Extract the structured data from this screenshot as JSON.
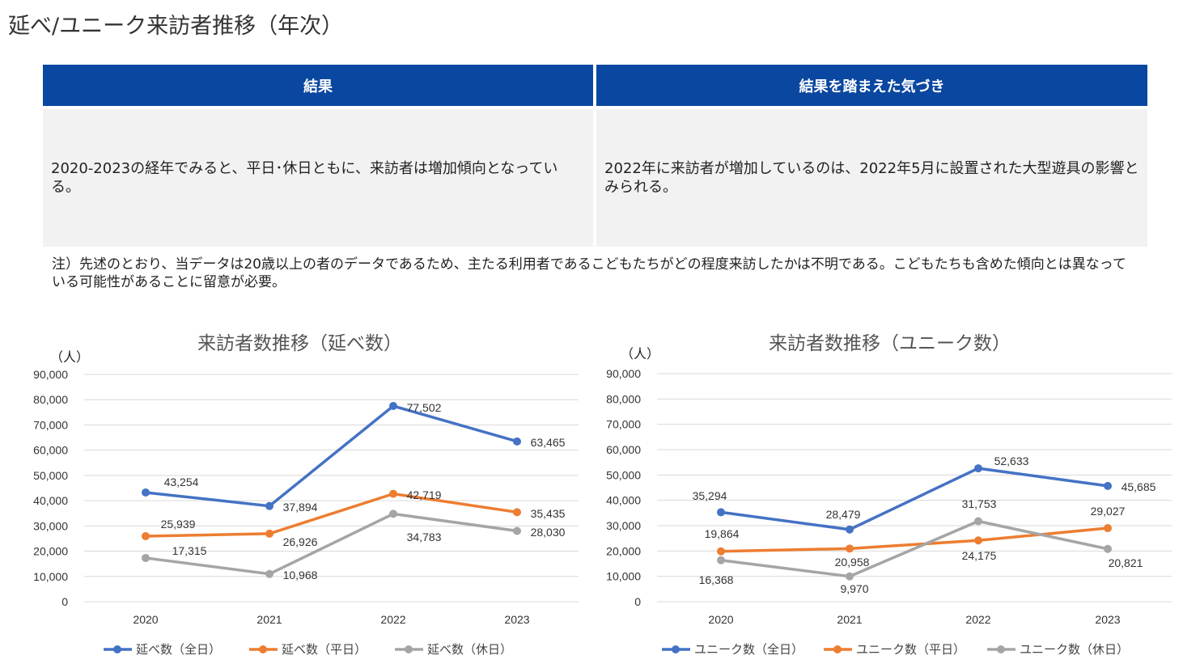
{
  "title": "延べ/ユニーク来訪者推移（年次）",
  "table": {
    "headers": [
      "結果",
      "結果を踏まえた気づき"
    ],
    "cells": [
      "2020-2023の経年でみると、平日･休日ともに、来訪者は増加傾向となっている。",
      "2022年に来訪者が増加しているのは、2022年5月に設置された大型遊具の影響とみられる。"
    ]
  },
  "note": "注）先述のとおり、当データは20歳以上の者のデータであるため、主たる利用者であるこどもたちがどの程度来訪したかは不明である。こどもたちも含めた傾向とは異なっている可能性があることに留意が必要。",
  "chart_data": [
    {
      "type": "line",
      "title": "来訪者数推移（延べ数）",
      "ylabel": "（人）",
      "categories": [
        "2020",
        "2021",
        "2022",
        "2023"
      ],
      "ylim": [
        0,
        90000
      ],
      "yticks": [
        "0",
        "10,000",
        "20,000",
        "30,000",
        "40,000",
        "50,000",
        "60,000",
        "70,000",
        "80,000",
        "90,000"
      ],
      "grid": true,
      "legend": "bottom",
      "series": [
        {
          "name": "延べ数（全日）",
          "color": "#4472c4",
          "values": [
            43254,
            37894,
            77502,
            63465
          ],
          "labels": [
            "43,254",
            "37,894",
            "77,502",
            "63,465"
          ]
        },
        {
          "name": "延べ数（平日）",
          "color": "#ed7d31",
          "values": [
            25939,
            26926,
            42719,
            35435
          ],
          "labels": [
            "25,939",
            "26,926",
            "42,719",
            "35,435"
          ]
        },
        {
          "name": "延べ数（休日）",
          "color": "#a5a5a5",
          "values": [
            17315,
            10968,
            34783,
            28030
          ],
          "labels": [
            "17,315",
            "10,968",
            "34,783",
            "28,030"
          ]
        }
      ]
    },
    {
      "type": "line",
      "title": "来訪者数推移（ユニーク数）",
      "ylabel": "（人）",
      "categories": [
        "2020",
        "2021",
        "2022",
        "2023"
      ],
      "ylim": [
        0,
        90000
      ],
      "yticks": [
        "0",
        "10,000",
        "20,000",
        "30,000",
        "40,000",
        "50,000",
        "60,000",
        "70,000",
        "80,000",
        "90,000"
      ],
      "grid": true,
      "legend": "bottom",
      "series": [
        {
          "name": "ユニーク数（全日）",
          "color": "#4472c4",
          "values": [
            35294,
            28479,
            52633,
            45685
          ],
          "labels": [
            "35,294",
            "28,479",
            "52,633",
            "45,685"
          ]
        },
        {
          "name": "ユニーク数（平日）",
          "color": "#ed7d31",
          "values": [
            19864,
            20958,
            24175,
            29027
          ],
          "labels": [
            "19,864",
            "20,958",
            "24,175",
            "29,027"
          ]
        },
        {
          "name": "ユニーク数（休日）",
          "color": "#a5a5a5",
          "values": [
            16368,
            9970,
            31753,
            20821
          ],
          "labels": [
            "16,368",
            "9,970",
            "31,753",
            "20,821"
          ]
        }
      ]
    }
  ]
}
